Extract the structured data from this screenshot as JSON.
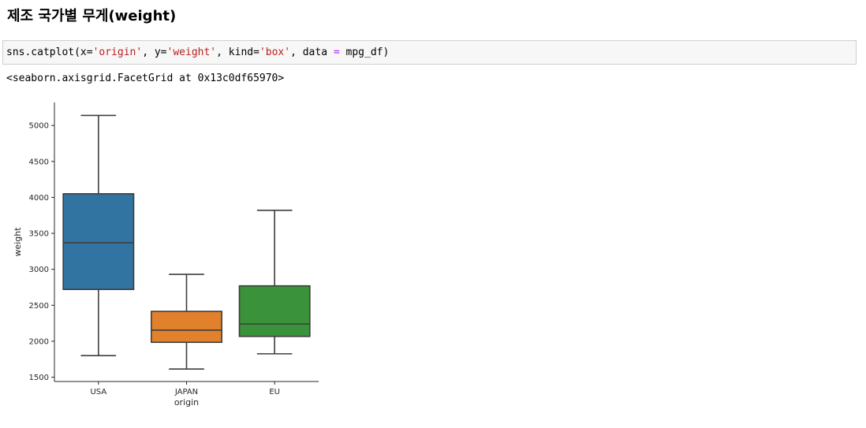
{
  "heading": "제조 국가별 무게(weight)",
  "code": {
    "pre": "sns.catplot(x=",
    "s1": "'origin'",
    "m1": ", y=",
    "s2": "'weight'",
    "m2": ", kind=",
    "s3": "'box'",
    "m3": ", data ",
    "eq": "=",
    "post": " mpg_df)"
  },
  "output": "<seaborn.axisgrid.FacetGrid at 0x13c0df65970>",
  "chart_data": {
    "type": "box",
    "xlabel": "origin",
    "ylabel": "weight",
    "ylim": [
      1440,
      5320
    ],
    "yticks": [
      1500,
      2000,
      2500,
      3000,
      3500,
      4000,
      4500,
      5000
    ],
    "categories": [
      "USA",
      "JAPAN",
      "EU"
    ],
    "boxes": [
      {
        "category": "USA",
        "whislo": 1800,
        "q1": 2720,
        "median": 3370,
        "q3": 4050,
        "whishi": 5140,
        "color": "#3274a1"
      },
      {
        "category": "JAPAN",
        "whislo": 1613,
        "q1": 1985,
        "median": 2155,
        "q3": 2415,
        "whishi": 2930,
        "color": "#e1812c"
      },
      {
        "category": "EU",
        "whislo": 1825,
        "q1": 2067,
        "median": 2240,
        "q3": 2770,
        "whishi": 3820,
        "color": "#3a923a"
      }
    ],
    "line_color": "#3d3d3d"
  }
}
